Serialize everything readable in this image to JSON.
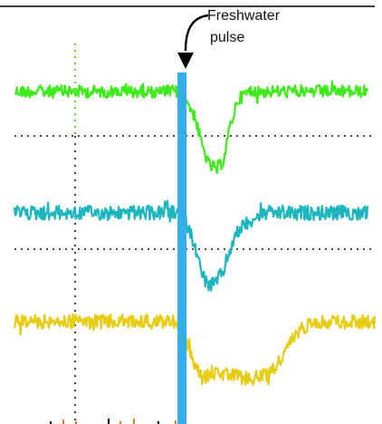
{
  "annotation": {
    "line1": "Freshwater",
    "line2": "pulse"
  },
  "colors": {
    "pulse_band": "#33AEEA",
    "trace_top": "#3FEA1A",
    "trace_middle": "#1EB6BE",
    "trace_bottom": "#E8CC14",
    "gridline": "#111111",
    "event_marker_dotted": "#5ADC2A",
    "bottom_ticks": "#E07B2A"
  },
  "chart_data": {
    "type": "line",
    "title": "",
    "xlabel": "",
    "ylabel": "",
    "grid": "dotted horizontal baselines",
    "annotation": "Freshwater pulse",
    "pulse_band_x": [
      0.465,
      0.49
    ],
    "xlim": [
      0,
      1
    ],
    "series": [
      {
        "color": "#3FEA1A",
        "x": [
          0.0,
          0.1,
          0.2,
          0.3,
          0.4,
          0.465,
          0.5,
          0.52,
          0.54,
          0.56,
          0.58,
          0.6,
          0.62,
          0.65,
          0.7,
          0.8,
          0.9,
          0.98
        ],
        "y": [
          0.0,
          0.0,
          0.0,
          0.0,
          0.0,
          0.0,
          -0.3,
          -0.65,
          -0.9,
          -0.95,
          -0.85,
          -0.4,
          -0.1,
          0.0,
          0.0,
          0.0,
          0.0,
          0.0
        ]
      },
      {
        "color": "#1EB6BE",
        "x": [
          0.0,
          0.1,
          0.2,
          0.3,
          0.4,
          0.465,
          0.5,
          0.52,
          0.54,
          0.56,
          0.58,
          0.6,
          0.62,
          0.65,
          0.7,
          0.8,
          0.9,
          0.98
        ],
        "y": [
          0.0,
          0.0,
          0.0,
          0.0,
          0.0,
          0.0,
          -0.4,
          -0.8,
          -0.95,
          -0.9,
          -0.75,
          -0.45,
          -0.25,
          -0.1,
          0.0,
          0.0,
          0.0,
          0.0
        ]
      },
      {
        "color": "#E8CC14",
        "x": [
          0.0,
          0.1,
          0.2,
          0.3,
          0.4,
          0.465,
          0.49,
          0.52,
          0.55,
          0.6,
          0.65,
          0.7,
          0.74,
          0.78,
          0.82,
          0.9,
          1.0
        ],
        "y": [
          0.0,
          0.0,
          0.0,
          0.0,
          0.0,
          0.0,
          -0.55,
          -0.9,
          -0.8,
          -0.85,
          -0.9,
          -0.85,
          -0.6,
          -0.2,
          0.0,
          0.0,
          0.0
        ]
      }
    ]
  }
}
